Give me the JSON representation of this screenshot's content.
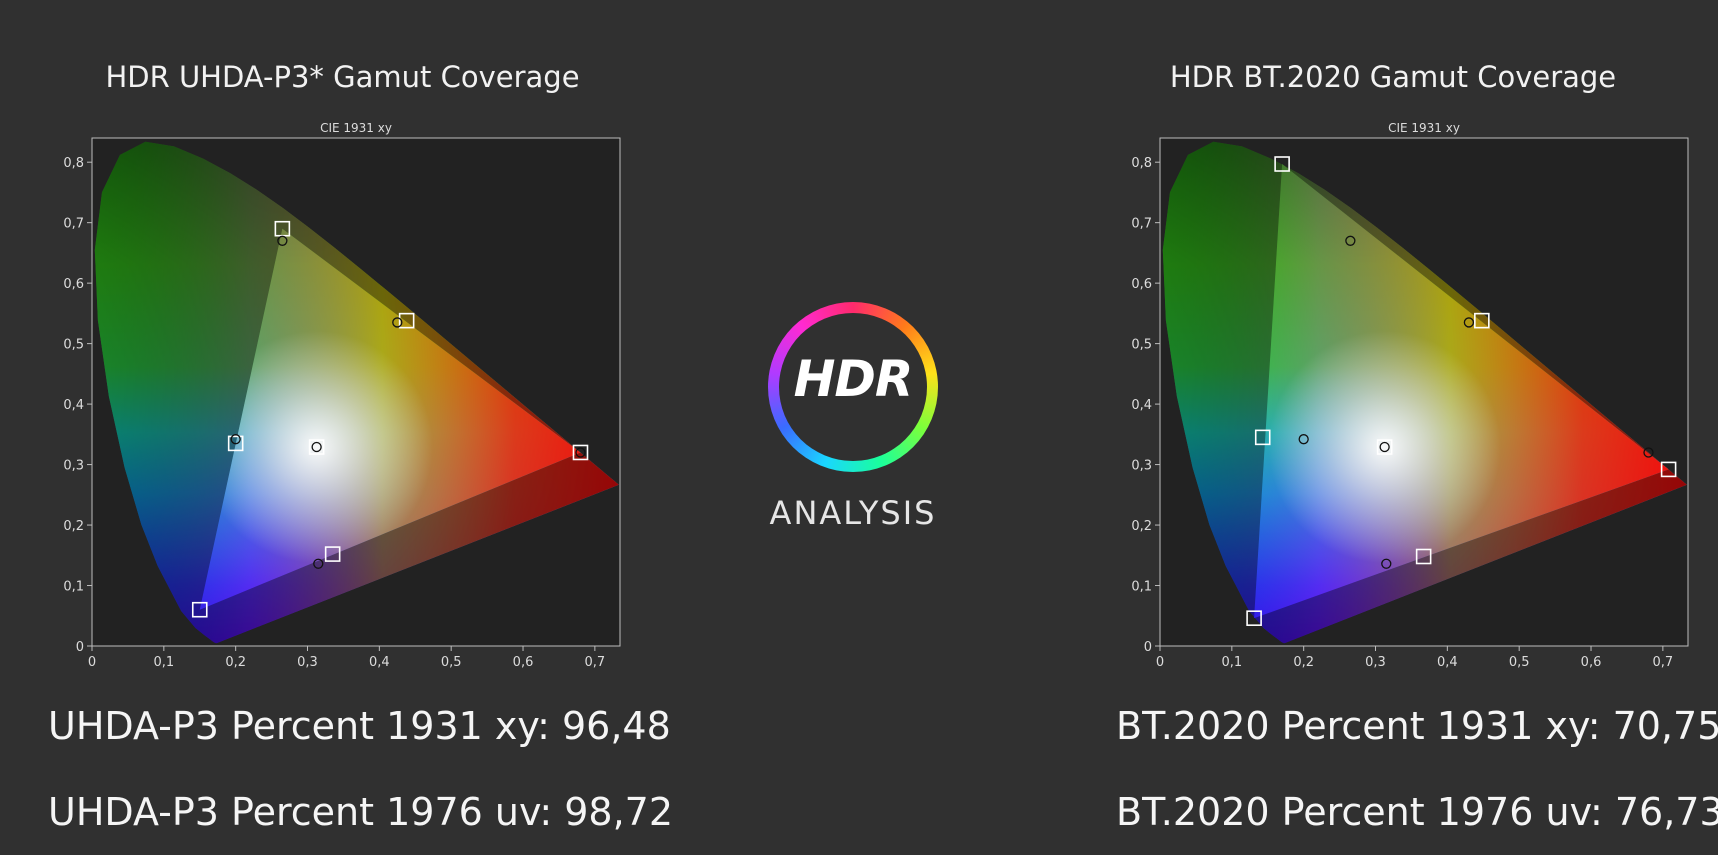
{
  "left_panel": {
    "title": "HDR UHDA-P3* Gamut Coverage",
    "stat_xy": "UHDA-P3 Percent 1931 xy: 96,48",
    "stat_uv": "UHDA-P3 Percent 1976 uv: 98,72"
  },
  "right_panel": {
    "title": "HDR BT.2020  Gamut Coverage",
    "stat_xy": "BT.2020 Percent 1931 xy: 70,75",
    "stat_uv": "BT.2020 Percent 1976 uv: 76,73"
  },
  "logo": {
    "hdr_text": "HDR",
    "analysis_text": "ANALYSIS",
    "icon": "hdr-rainbow-ring-icon"
  },
  "colors": {
    "background": "#303030",
    "plot_background": "#222222",
    "frame": "#bdbdbd",
    "text": "#f2f2f2"
  },
  "chart_data": [
    {
      "type": "scatter",
      "title": "CIE 1931 xy",
      "xlabel": "",
      "ylabel": "",
      "xlim": [
        0,
        0.735
      ],
      "ylim": [
        0,
        0.84
      ],
      "x_ticks": [
        "0",
        "0,1",
        "0,2",
        "0,3",
        "0,4",
        "0,5",
        "0,6",
        "0,7"
      ],
      "y_ticks": [
        "0",
        "0,1",
        "0,2",
        "0,3",
        "0,4",
        "0,5",
        "0,6",
        "0,7",
        "0,8"
      ],
      "grid": false,
      "gamut_triangle": [
        [
          0.68,
          0.32
        ],
        [
          0.265,
          0.69
        ],
        [
          0.15,
          0.06
        ]
      ],
      "target_points": [
        [
          0.68,
          0.32
        ],
        [
          0.265,
          0.69
        ],
        [
          0.15,
          0.06
        ],
        [
          0.438,
          0.538
        ],
        [
          0.2,
          0.335
        ],
        [
          0.335,
          0.152
        ],
        [
          0.3127,
          0.329
        ]
      ],
      "measured_points": [
        [
          0.68,
          0.32
        ],
        [
          0.265,
          0.67
        ],
        [
          0.425,
          0.535
        ],
        [
          0.2,
          0.342
        ],
        [
          0.315,
          0.136
        ],
        [
          0.3127,
          0.329
        ]
      ]
    },
    {
      "type": "scatter",
      "title": "CIE 1931 xy",
      "xlabel": "",
      "ylabel": "",
      "xlim": [
        0,
        0.735
      ],
      "ylim": [
        0,
        0.84
      ],
      "x_ticks": [
        "0",
        "0,1",
        "0,2",
        "0,3",
        "0,4",
        "0,5",
        "0,6",
        "0,7"
      ],
      "y_ticks": [
        "0",
        "0,1",
        "0,2",
        "0,3",
        "0,4",
        "0,5",
        "0,6",
        "0,7",
        "0,8"
      ],
      "grid": false,
      "gamut_triangle": [
        [
          0.708,
          0.292
        ],
        [
          0.17,
          0.797
        ],
        [
          0.131,
          0.046
        ]
      ],
      "target_points": [
        [
          0.708,
          0.292
        ],
        [
          0.17,
          0.797
        ],
        [
          0.131,
          0.046
        ],
        [
          0.448,
          0.538
        ],
        [
          0.143,
          0.345
        ],
        [
          0.367,
          0.148
        ],
        [
          0.3127,
          0.329
        ]
      ],
      "measured_points": [
        [
          0.68,
          0.32
        ],
        [
          0.265,
          0.67
        ],
        [
          0.43,
          0.535
        ],
        [
          0.2,
          0.342
        ],
        [
          0.315,
          0.136
        ],
        [
          0.3127,
          0.329
        ]
      ]
    }
  ]
}
